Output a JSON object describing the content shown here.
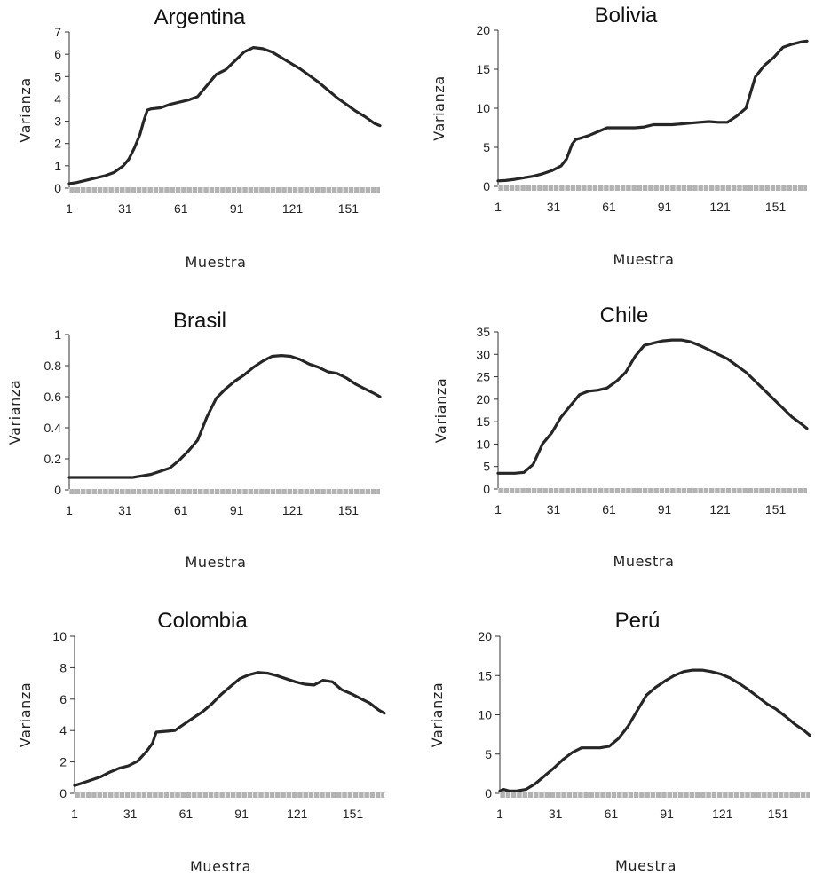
{
  "chart_data": [
    {
      "type": "line",
      "title": "Argentina",
      "xlabel": "Muestra",
      "ylabel": "Varianza",
      "xlim": [
        1,
        168
      ],
      "ylim": [
        0,
        7
      ],
      "yticks": [
        "0",
        "1",
        "2",
        "3",
        "4",
        "5",
        "6",
        "7"
      ],
      "xticks": [
        "1",
        "31",
        "61",
        "91",
        "121",
        "151"
      ],
      "series": [
        {
          "x": [
            1,
            5,
            10,
            15,
            20,
            25,
            30,
            33,
            36,
            39,
            41,
            43,
            45,
            50,
            55,
            60,
            65,
            70,
            75,
            80,
            85,
            90,
            95,
            100,
            105,
            110,
            115,
            120,
            125,
            130,
            135,
            140,
            145,
            150,
            155,
            160,
            165,
            168
          ],
          "y": [
            0.2,
            0.25,
            0.35,
            0.45,
            0.55,
            0.7,
            1.0,
            1.3,
            1.8,
            2.4,
            3.0,
            3.5,
            3.55,
            3.6,
            3.75,
            3.85,
            3.95,
            4.1,
            4.6,
            5.1,
            5.3,
            5.7,
            6.1,
            6.3,
            6.25,
            6.1,
            5.85,
            5.6,
            5.35,
            5.05,
            4.75,
            4.4,
            4.05,
            3.75,
            3.45,
            3.2,
            2.9,
            2.8
          ]
        }
      ]
    },
    {
      "type": "line",
      "title": "Bolivia",
      "xlabel": "Muestra",
      "ylabel": "Varianza",
      "xlim": [
        1,
        168
      ],
      "ylim": [
        0,
        20
      ],
      "yticks": [
        "0",
        "5",
        "10",
        "15",
        "20"
      ],
      "xticks": [
        "1",
        "31",
        "61",
        "91",
        "121",
        "151"
      ],
      "series": [
        {
          "x": [
            1,
            5,
            10,
            15,
            20,
            25,
            30,
            35,
            38,
            41,
            43,
            46,
            50,
            55,
            60,
            65,
            70,
            75,
            80,
            85,
            90,
            95,
            100,
            105,
            110,
            115,
            120,
            125,
            130,
            135,
            140,
            145,
            150,
            155,
            160,
            165,
            168
          ],
          "y": [
            0.7,
            0.75,
            0.9,
            1.1,
            1.3,
            1.6,
            2.0,
            2.6,
            3.5,
            5.4,
            6.0,
            6.2,
            6.5,
            7.0,
            7.5,
            7.5,
            7.5,
            7.5,
            7.6,
            7.9,
            7.9,
            7.9,
            8.0,
            8.1,
            8.2,
            8.3,
            8.2,
            8.2,
            9.0,
            10.0,
            14.0,
            15.5,
            16.5,
            17.8,
            18.2,
            18.5,
            18.6
          ]
        }
      ]
    },
    {
      "type": "line",
      "title": "Brasil",
      "xlabel": "Muestra",
      "ylabel": "Varianza",
      "xlim": [
        1,
        168
      ],
      "ylim": [
        0,
        1
      ],
      "yticks": [
        "0",
        "0.2",
        "0.4",
        "0.6",
        "0.8",
        "1"
      ],
      "xticks": [
        "1",
        "31",
        "61",
        "91",
        "121",
        "151"
      ],
      "series": [
        {
          "x": [
            1,
            10,
            20,
            30,
            35,
            40,
            45,
            50,
            55,
            60,
            65,
            70,
            75,
            80,
            85,
            90,
            95,
            100,
            105,
            110,
            115,
            120,
            125,
            130,
            135,
            140,
            145,
            150,
            155,
            160,
            165,
            168
          ],
          "y": [
            0.08,
            0.08,
            0.08,
            0.08,
            0.08,
            0.09,
            0.1,
            0.12,
            0.14,
            0.19,
            0.25,
            0.32,
            0.47,
            0.59,
            0.65,
            0.7,
            0.74,
            0.79,
            0.83,
            0.86,
            0.865,
            0.86,
            0.84,
            0.81,
            0.79,
            0.76,
            0.75,
            0.72,
            0.68,
            0.65,
            0.62,
            0.6
          ]
        }
      ]
    },
    {
      "type": "line",
      "title": "Chile",
      "xlabel": "Muestra",
      "ylabel": "Varianza",
      "xlim": [
        1,
        168
      ],
      "ylim": [
        0,
        35
      ],
      "yticks": [
        "0",
        "5",
        "10",
        "15",
        "20",
        "25",
        "30",
        "35"
      ],
      "xticks": [
        "1",
        "31",
        "61",
        "91",
        "121",
        "151"
      ],
      "series": [
        {
          "x": [
            1,
            5,
            10,
            15,
            20,
            25,
            30,
            35,
            40,
            45,
            50,
            55,
            60,
            65,
            70,
            75,
            80,
            85,
            90,
            95,
            100,
            105,
            110,
            115,
            120,
            125,
            130,
            135,
            140,
            145,
            150,
            155,
            160,
            165,
            168
          ],
          "y": [
            3.5,
            3.5,
            3.5,
            3.7,
            5.5,
            10.0,
            12.5,
            16.0,
            18.5,
            21.0,
            21.8,
            22.0,
            22.5,
            24.0,
            26.0,
            29.5,
            32.0,
            32.5,
            33.0,
            33.2,
            33.2,
            32.8,
            32.0,
            31.0,
            30.0,
            29.0,
            27.5,
            26.0,
            24.0,
            22.0,
            20.0,
            18.0,
            16.0,
            14.5,
            13.5
          ]
        }
      ]
    },
    {
      "type": "line",
      "title": "Colombia",
      "xlabel": "Muestra",
      "ylabel": "Varianza",
      "xlim": [
        1,
        168
      ],
      "ylim": [
        0,
        10
      ],
      "yticks": [
        "0",
        "2",
        "4",
        "6",
        "8",
        "10"
      ],
      "xticks": [
        "1",
        "31",
        "61",
        "91",
        "121",
        "151"
      ],
      "series": [
        {
          "x": [
            1,
            5,
            10,
            15,
            20,
            25,
            30,
            35,
            40,
            43,
            45,
            50,
            55,
            60,
            65,
            70,
            75,
            80,
            85,
            90,
            95,
            100,
            105,
            110,
            115,
            120,
            125,
            130,
            135,
            140,
            145,
            150,
            155,
            160,
            165,
            168
          ],
          "y": [
            0.5,
            0.65,
            0.85,
            1.05,
            1.35,
            1.6,
            1.75,
            2.05,
            2.7,
            3.2,
            3.9,
            3.95,
            4.0,
            4.4,
            4.8,
            5.2,
            5.7,
            6.3,
            6.8,
            7.3,
            7.55,
            7.7,
            7.65,
            7.5,
            7.3,
            7.1,
            6.95,
            6.9,
            7.2,
            7.1,
            6.6,
            6.35,
            6.05,
            5.75,
            5.3,
            5.1
          ]
        }
      ]
    },
    {
      "type": "line",
      "title": "Perú",
      "xlabel": "Muestra",
      "ylabel": "Varianza",
      "xlim": [
        1,
        168
      ],
      "ylim": [
        0,
        20
      ],
      "yticks": [
        "0",
        "5",
        "10",
        "15",
        "20"
      ],
      "xticks": [
        "1",
        "31",
        "61",
        "91",
        "121",
        "151"
      ],
      "series": [
        {
          "x": [
            1,
            3,
            6,
            10,
            15,
            20,
            25,
            30,
            35,
            40,
            45,
            50,
            55,
            60,
            65,
            70,
            75,
            80,
            85,
            90,
            95,
            100,
            105,
            110,
            115,
            120,
            125,
            130,
            135,
            140,
            145,
            150,
            155,
            160,
            165,
            168
          ],
          "y": [
            0.3,
            0.5,
            0.3,
            0.3,
            0.5,
            1.2,
            2.2,
            3.2,
            4.3,
            5.2,
            5.8,
            5.8,
            5.8,
            6.0,
            7.0,
            8.5,
            10.5,
            12.5,
            13.5,
            14.3,
            15.0,
            15.5,
            15.7,
            15.7,
            15.5,
            15.2,
            14.7,
            14.0,
            13.2,
            12.3,
            11.4,
            10.7,
            9.8,
            8.8,
            8.0,
            7.4
          ]
        }
      ]
    }
  ]
}
